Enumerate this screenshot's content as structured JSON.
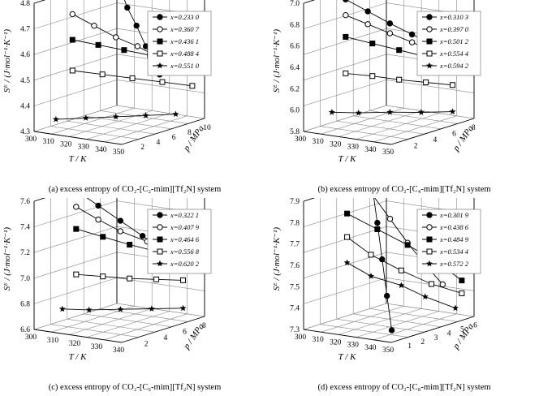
{
  "panels": [
    {
      "caption": "(a)  excess entropy of CO₂-[C₂-mim][Tf₂N] system",
      "chart_data": {
        "type": "line3d",
        "zlabel": "Sᴱ / (J·mol⁻¹·K⁻¹)",
        "xlabel": "T / K",
        "ylabel": "p / MPa",
        "x_ticks": [
          "300",
          "310",
          "320",
          "330",
          "340",
          "350"
        ],
        "y_ticks": [
          "2",
          "4",
          "6",
          "8",
          "10"
        ],
        "z_ticks": [
          "4.3",
          "4.4",
          "4.5",
          "4.6",
          "4.7",
          "4.8"
        ],
        "xlim": [
          300,
          350
        ],
        "ylim": [
          0,
          10
        ],
        "zlim": [
          4.3,
          4.8
        ],
        "series": [
          {
            "name": "x=0.233 0",
            "marker": "circle-filled",
            "x": [
              303,
              313,
              323,
              333,
              343,
              348
            ],
            "y": [
              9.5,
              8.5,
              7.5,
              6.5,
              5.5,
              5.0
            ],
            "z": [
              4.79,
              4.71,
              4.66,
              4.6,
              4.54,
              4.52
            ]
          },
          {
            "name": "x=0.360 7",
            "marker": "circle-open",
            "x": [
              303,
              313,
              323,
              333,
              343,
              348
            ],
            "y": [
              4.0,
              4.5,
              5.0,
              5.5,
              6.0,
              6.5
            ],
            "z": [
              4.72,
              4.68,
              4.64,
              4.61,
              4.57,
              4.55
            ]
          },
          {
            "name": "x=0.436 1",
            "marker": "square-filled",
            "x": [
              303,
              313,
              323,
              333,
              343,
              348
            ],
            "y": [
              4.0,
              5.0,
              6.0,
              7.0,
              8.0,
              9.0
            ],
            "z": [
              4.62,
              4.6,
              4.58,
              4.56,
              4.54,
              4.52
            ]
          },
          {
            "name": "x=0.488 4",
            "marker": "square-open",
            "x": [
              303,
              313,
              323,
              333,
              343
            ],
            "y": [
              4.0,
              5.5,
              7.0,
              8.5,
              10.0
            ],
            "z": [
              4.5,
              4.48,
              4.46,
              4.44,
              4.42
            ]
          },
          {
            "name": "x=0.551 0",
            "marker": "star",
            "x": [
              303,
              313,
              323,
              333,
              343
            ],
            "y": [
              2.0,
              3.5,
              5.0,
              6.5,
              8.0
            ],
            "z": [
              4.33,
              4.33,
              4.33,
              4.33,
              4.33
            ]
          }
        ]
      }
    },
    {
      "caption": "(b) excess entropy of CO₂-[C₄-mim][Tf₂N] system",
      "chart_data": {
        "type": "line3d",
        "zlabel": "Sᴱ / (J·mol⁻¹·K⁻¹)",
        "xlabel": "T / K",
        "ylabel": "p / MPa",
        "x_ticks": [
          "300",
          "310",
          "320",
          "330",
          "340",
          "350"
        ],
        "y_ticks": [
          "2",
          "4",
          "6",
          "8"
        ],
        "z_ticks": [
          "5.8",
          "6.0",
          "6.2",
          "6.4",
          "6.6",
          "6.8",
          "7.0"
        ],
        "xlim": [
          300,
          350
        ],
        "ylim": [
          0,
          9
        ],
        "zlim": [
          5.8,
          7.1
        ],
        "series": [
          {
            "name": "x=0.310 3",
            "marker": "circle-filled",
            "x": [
              303,
              313,
              323,
              333,
              343
            ],
            "y": [
              4.0,
              4.5,
              5.0,
              5.5,
              6.0
            ],
            "z": [
              7.03,
              6.92,
              6.81,
              6.71,
              6.62
            ]
          },
          {
            "name": "x=0.397 0",
            "marker": "circle-open",
            "x": [
              303,
              313,
              323,
              333,
              343
            ],
            "y": [
              4.0,
              4.5,
              5.0,
              5.5,
              6.5
            ],
            "z": [
              6.87,
              6.79,
              6.71,
              6.63,
              6.51
            ]
          },
          {
            "name": "x=0.501 2",
            "marker": "square-filled",
            "x": [
              303,
              313,
              323,
              333,
              343
            ],
            "y": [
              4.0,
              5.0,
              6.0,
              7.0,
              8.0
            ],
            "z": [
              6.65,
              6.58,
              6.51,
              6.44,
              6.38
            ]
          },
          {
            "name": "x=0.554 4",
            "marker": "square-open",
            "x": [
              303,
              313,
              323,
              333,
              343
            ],
            "y": [
              4.0,
              5.0,
              6.0,
              7.0,
              8.0
            ],
            "z": [
              6.28,
              6.25,
              6.21,
              6.18,
              6.15
            ]
          },
          {
            "name": "x=0.594 2",
            "marker": "star",
            "x": [
              303,
              313,
              323,
              333,
              343
            ],
            "y": [
              2.5,
              3.5,
              5.0,
              6.5,
              8.0
            ],
            "z": [
              5.93,
              5.92,
              5.91,
              5.89,
              5.88
            ]
          }
        ]
      }
    },
    {
      "caption": "(c) excess entropy of CO₂-[C₆-mim][Tf₂N] system",
      "chart_data": {
        "type": "line3d",
        "zlabel": "Sᴱ / (J·mol⁻¹·K⁻¹)",
        "xlabel": "T / K",
        "ylabel": "p / MPa",
        "x_ticks": [
          "300",
          "310",
          "320",
          "330",
          "340"
        ],
        "y_ticks": [
          "2",
          "4",
          "6",
          "8"
        ],
        "z_ticks": [
          "6.6",
          "6.8",
          "7.0",
          "7.2",
          "7.4",
          "7.6"
        ],
        "xlim": [
          300,
          350
        ],
        "ylim": [
          0,
          9
        ],
        "zlim": [
          6.6,
          7.7
        ],
        "series": [
          {
            "name": "x=0.322 1",
            "marker": "circle-filled",
            "x": [
              303,
              313,
              323,
              333,
              343
            ],
            "y": [
              4.0,
              4.5,
              5.0,
              5.5,
              6.0
            ],
            "z": [
              7.7,
              7.58,
              7.46,
              7.34,
              7.22
            ]
          },
          {
            "name": "x=0.407 9",
            "marker": "circle-open",
            "x": [
              303,
              313,
              323,
              333,
              343
            ],
            "y": [
              4.0,
              4.5,
              5.0,
              6.0,
              7.0
            ],
            "z": [
              7.56,
              7.46,
              7.37,
              7.28,
              7.2
            ]
          },
          {
            "name": "x=0.464 6",
            "marker": "square-filled",
            "x": [
              303,
              313,
              323,
              333,
              343
            ],
            "y": [
              4.0,
              5.0,
              6.0,
              7.0,
              8.0
            ],
            "z": [
              7.37,
              7.3,
              7.23,
              7.17,
              7.1
            ]
          },
          {
            "name": "x=0.556 8",
            "marker": "square-open",
            "x": [
              303,
              313,
              323,
              333,
              343
            ],
            "y": [
              4.0,
              5.0,
              6.0,
              7.0,
              8.0
            ],
            "z": [
              6.98,
              6.96,
              6.94,
              6.93,
              6.92
            ]
          },
          {
            "name": "x=0.620 2",
            "marker": "star",
            "x": [
              303,
              313,
              323,
              333,
              343
            ],
            "y": [
              2.5,
              3.5,
              5.0,
              6.5,
              8.0
            ],
            "z": [
              6.72,
              6.71,
              6.7,
              6.69,
              6.68
            ]
          }
        ]
      }
    },
    {
      "caption": "(d) excess entropy of CO₂-[C₈-mim][Tf₂N] system",
      "chart_data": {
        "type": "line3d",
        "zlabel": "Sᴱ / (J·mol⁻¹·K⁻¹)",
        "xlabel": "T / K",
        "ylabel": "p / MPa",
        "x_ticks": [
          "300",
          "310",
          "320",
          "330",
          "340",
          "350"
        ],
        "y_ticks": [
          "1",
          "2",
          "3",
          "4",
          "5",
          "6"
        ],
        "z_ticks": [
          "7.3",
          "7.4",
          "7.5",
          "7.6",
          "7.7",
          "7.8",
          "7.9"
        ],
        "xlim": [
          300,
          350
        ],
        "ylim": [
          0,
          6.5
        ],
        "zlim": [
          7.3,
          7.9
        ],
        "series": [
          {
            "name": "x=0.301 9",
            "marker": "circle-filled",
            "x": [
              303,
              313,
              323,
              333,
              343
            ],
            "y": [
              5.0,
              4.0,
              3.0,
              2.0,
              1.0
            ],
            "z": [
              7.87,
              7.74,
              7.6,
              7.46,
              7.33
            ]
          },
          {
            "name": "x=0.438 6",
            "marker": "circle-open",
            "x": [
              303,
              313,
              323,
              333,
              343
            ],
            "y": [
              5.0,
              5.0,
              5.0,
              5.0,
              5.0
            ],
            "z": [
              7.84,
              7.74,
              7.64,
              7.55,
              7.47
            ]
          },
          {
            "name": "x=0.484 9",
            "marker": "square-filled",
            "x": [
              303,
              313,
              323,
              333,
              343
            ],
            "y": [
              3.0,
              4.0,
              5.0,
              6.0,
              6.5
            ],
            "z": [
              7.79,
              7.71,
              7.63,
              7.54,
              7.46
            ]
          },
          {
            "name": "x=0.534 4",
            "marker": "square-open",
            "x": [
              303,
              313,
              323,
              333,
              343
            ],
            "y": [
              3.0,
              3.5,
              4.5,
              5.5,
              6.5
            ],
            "z": [
              7.68,
              7.6,
              7.52,
              7.45,
              7.4
            ]
          },
          {
            "name": "x=0.572 2",
            "marker": "star",
            "x": [
              303,
              313,
              323,
              333,
              343
            ],
            "y": [
              3.0,
              3.5,
              4.5,
              5.0,
              6.0
            ],
            "z": [
              7.56,
              7.5,
              7.45,
              7.4,
              7.34
            ]
          }
        ]
      }
    }
  ]
}
